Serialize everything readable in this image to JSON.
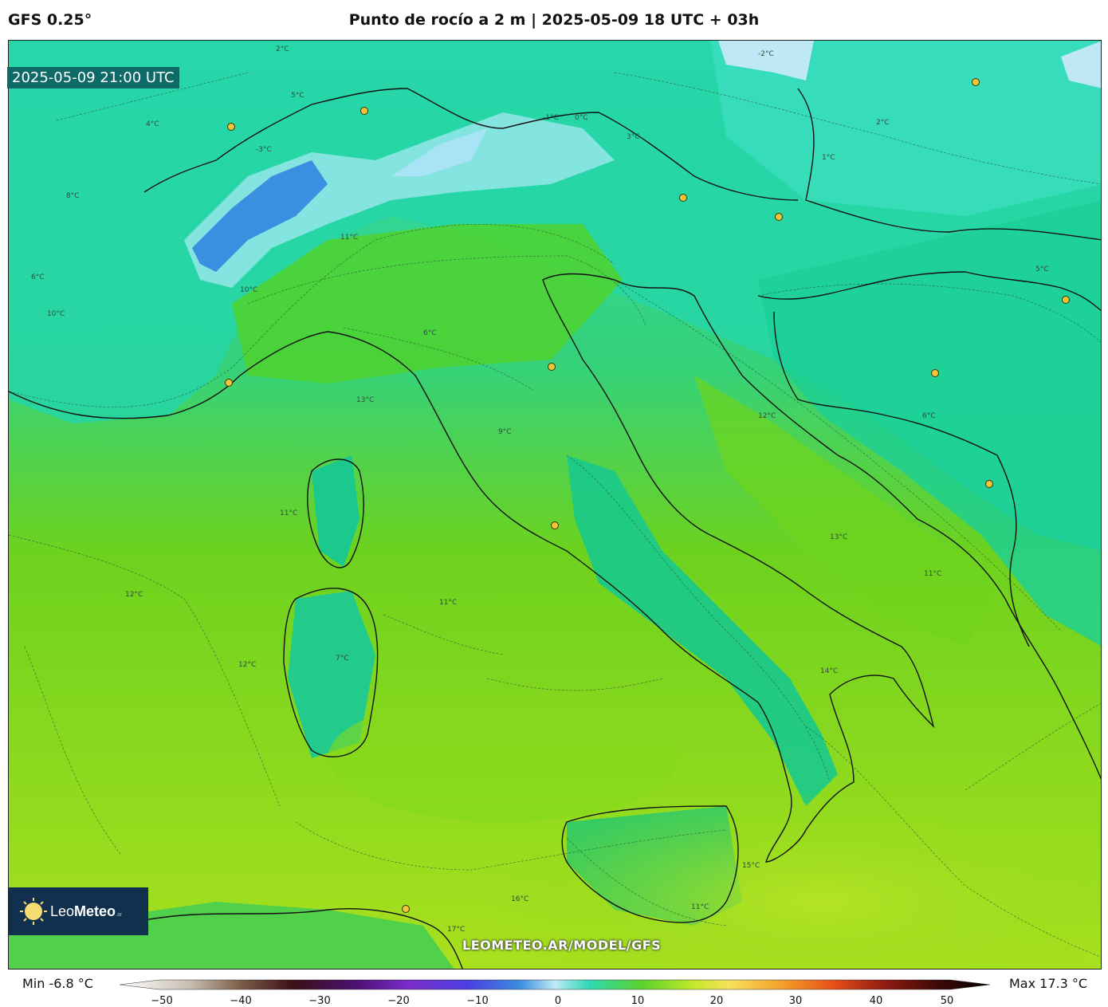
{
  "header": {
    "model": "GFS 0.25°",
    "title": "Punto de rocío a 2 m | 2025-05-09 18 UTC + 03h"
  },
  "map": {
    "valid_time": "2025-05-09 21:00 UTC",
    "watermark": "LEOMETEO.AR/MODEL/GFS",
    "variable": "dewpoint_2m",
    "contour_labels": [
      "2°C",
      "4°C",
      "5°C",
      "6°C",
      "8°C",
      "10°C",
      "-1°C",
      "-2°C",
      "-3°C",
      "0°C",
      "1°C",
      "3°C",
      "11°C",
      "12°C",
      "13°C",
      "9°C",
      "7°C",
      "14°C",
      "15°C",
      "16°C",
      "17°C"
    ],
    "colors": {
      "alps_cold": "#3a8fe0",
      "alps_light": "#a8e4f6",
      "north_teal": "#2ed8b4",
      "balkans": "#1fcf9a",
      "apennines": "#16c98a",
      "land_mid": "#5cd22a",
      "sea_west": "#74d41a",
      "sea_south": "#a6e01c"
    }
  },
  "logo": {
    "brand_light": "Leo",
    "brand_bold": "Meteo",
    "suffix": ".ar"
  },
  "colorbar": {
    "min_label": "Min -6.8 °C",
    "max_label": "Max 17.3 °C",
    "ticks": [
      "−50",
      "−40",
      "−30",
      "−20",
      "−10",
      "0",
      "10",
      "20",
      "30",
      "40",
      "50"
    ],
    "range": [
      -50,
      50
    ],
    "units": "°C"
  }
}
